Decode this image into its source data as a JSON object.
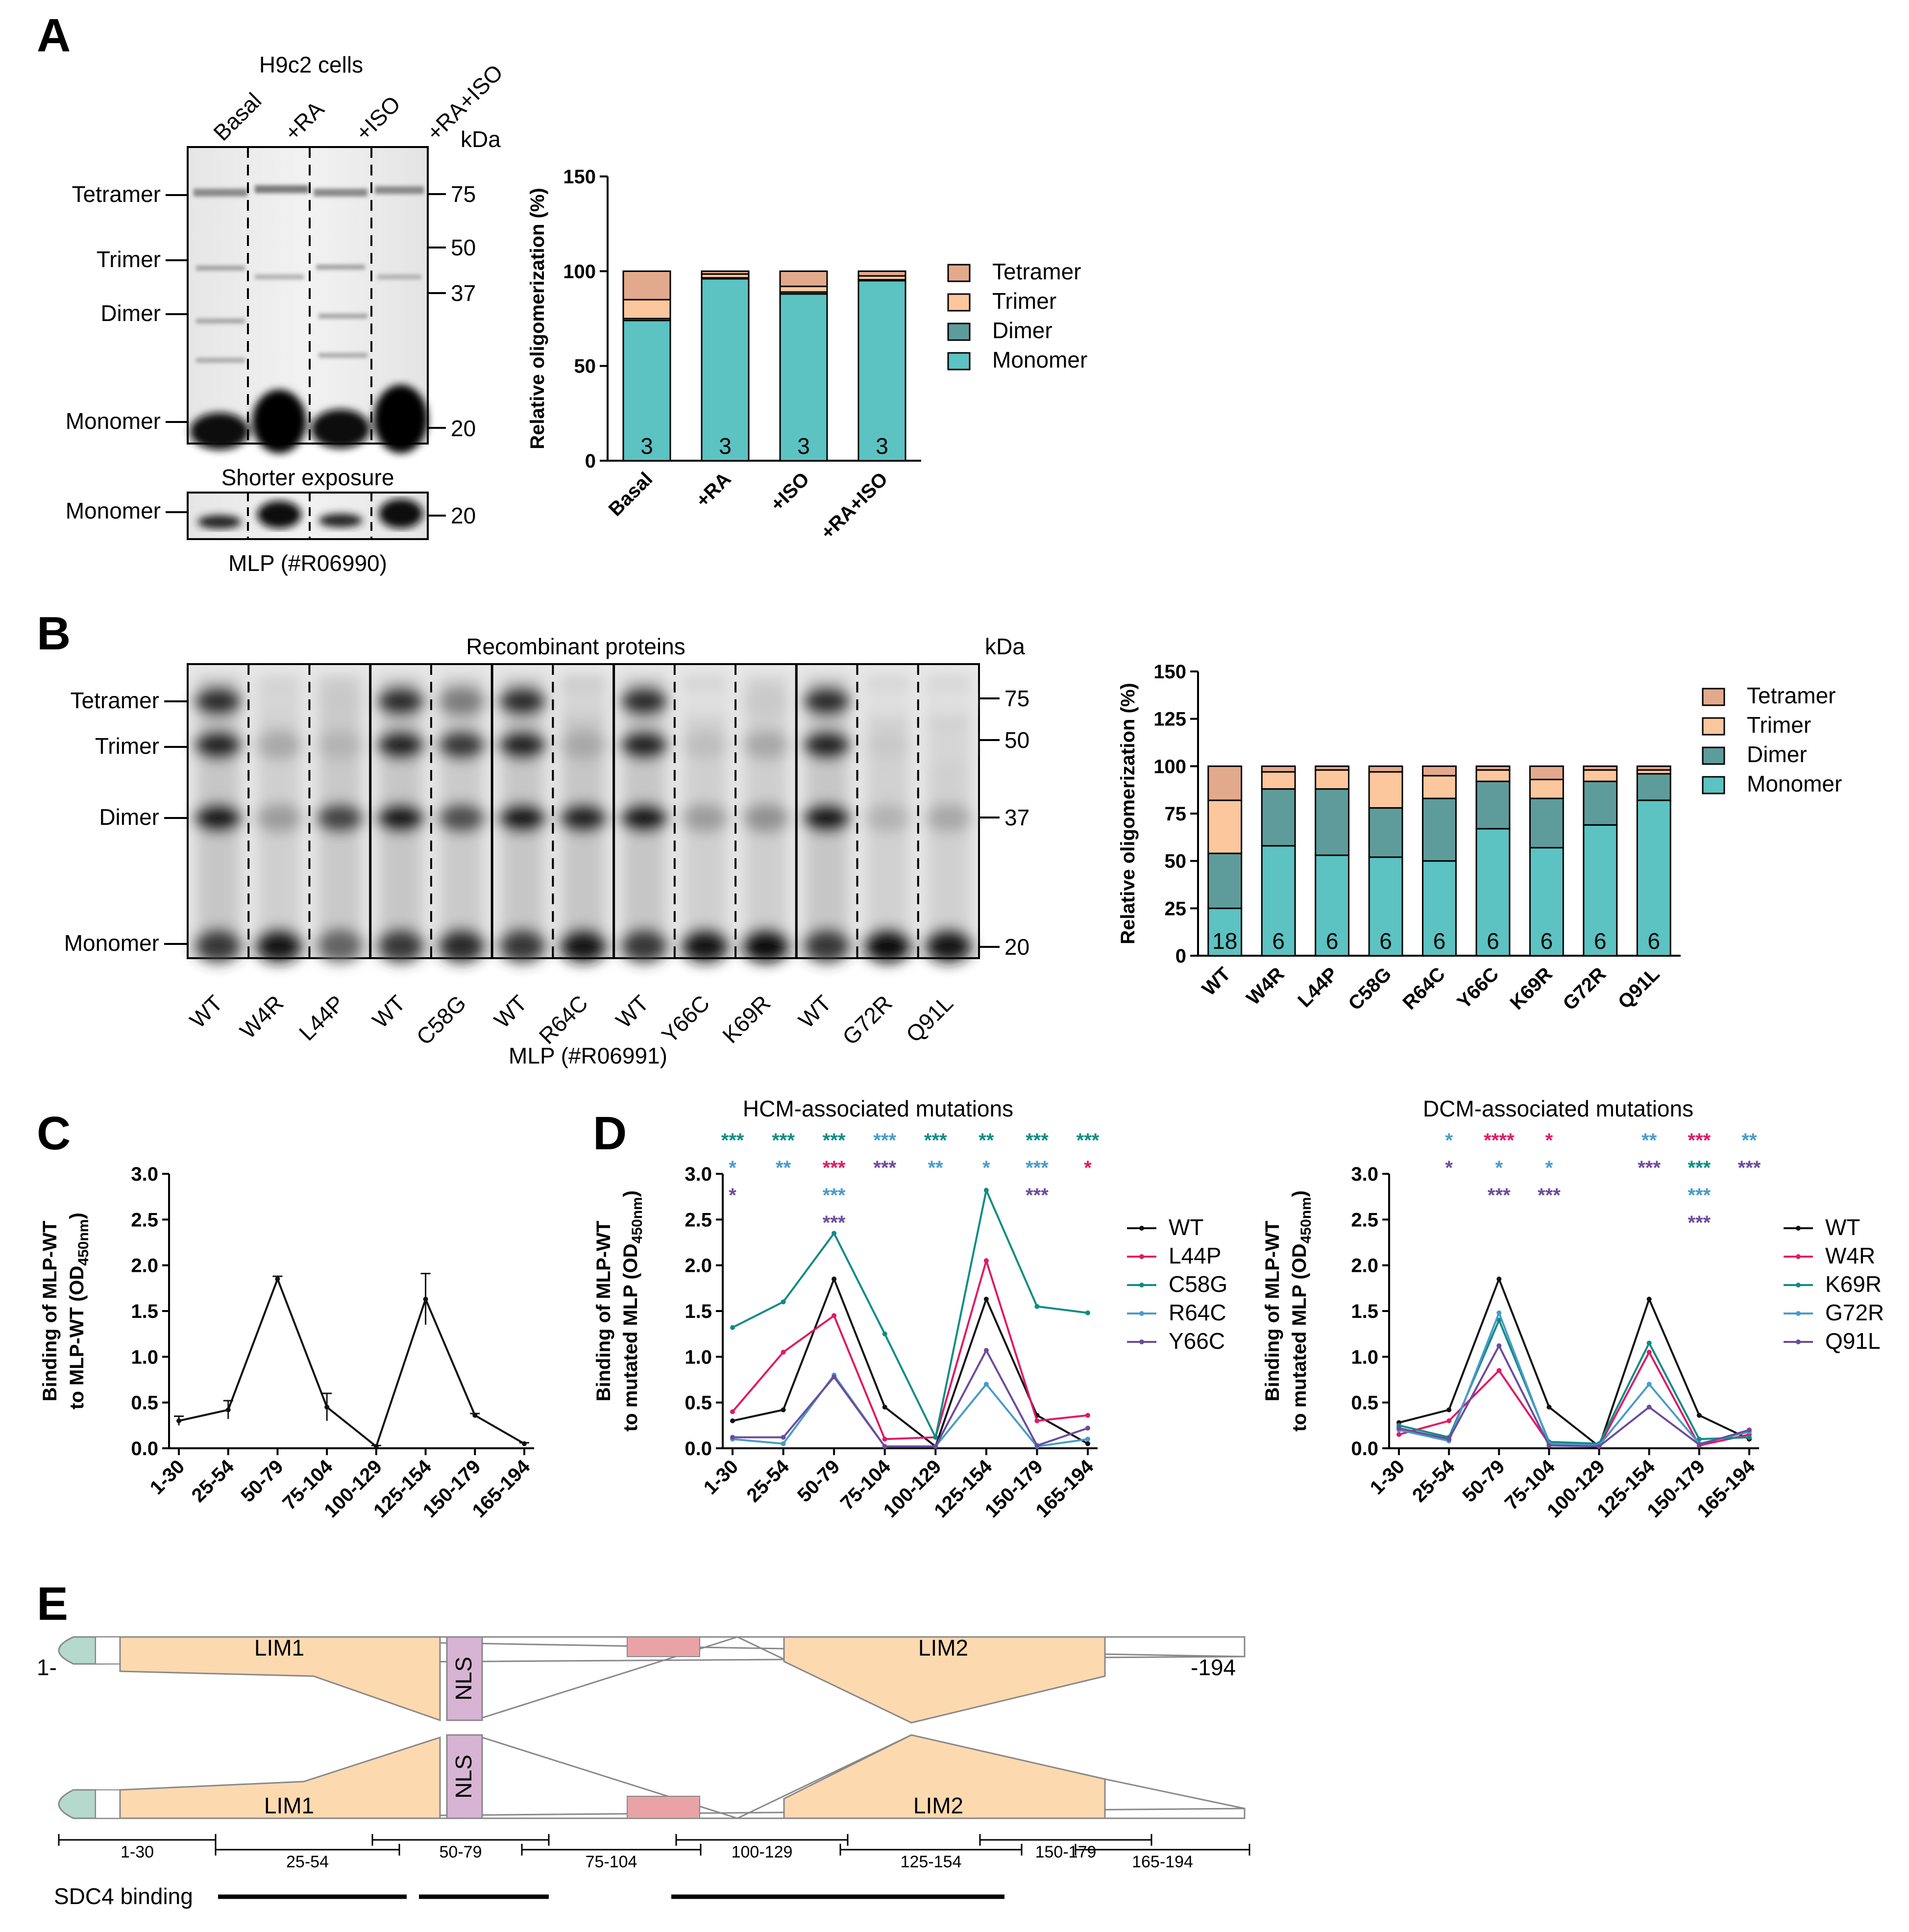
{
  "colors": {
    "tetramer": "#E3A98C",
    "trimer": "#FDC79D",
    "dimer": "#5E9C9C",
    "monomer": "#5CC2C2",
    "wt": "#111111",
    "l44p": "#E01A64",
    "c58g": "#0E8C84",
    "r64c": "#4A9BC9",
    "y66c": "#6B4C9C",
    "lim": "#FDD9B0",
    "nls": "#D8B4D4",
    "red_box": "#E9A3A6",
    "green_cap": "#B5D9CC"
  },
  "panelA": {
    "letter": "A",
    "cells_title": "H9c2 cells",
    "lanes": [
      "Basal",
      "+RA",
      "+ISO",
      "+RA+ISO"
    ],
    "kda": "kDa",
    "left_labels": [
      "Tetramer",
      "Trimer",
      "Dimer",
      "Monomer"
    ],
    "markers": [
      "75",
      "50",
      "37",
      "20"
    ],
    "shorter_exposure": "Shorter exposure",
    "monomer_label": "Monomer",
    "marker_short": "20",
    "antibody": "MLP (#R06990)"
  },
  "chartA": {
    "type": "bar",
    "stacked": true,
    "ylabel": "Relative oligomerization  (%)",
    "ylim": [
      0,
      150
    ],
    "yticks": [
      "0",
      "50",
      "100",
      "150"
    ],
    "categories": [
      "Basal",
      "+RA",
      "+ISO",
      "+RA+ISO"
    ],
    "n": [
      "3",
      "3",
      "3",
      "3"
    ],
    "series": [
      {
        "name": "Monomer",
        "values": [
          74,
          96,
          88,
          95
        ]
      },
      {
        "name": "Dimer",
        "values": [
          1,
          0.5,
          1,
          0.5
        ]
      },
      {
        "name": "Trimer",
        "values": [
          10,
          2,
          3,
          2
        ]
      },
      {
        "name": "Tetramer",
        "values": [
          15,
          1.5,
          8,
          2.5
        ]
      }
    ],
    "legend": [
      "Tetramer",
      "Trimer",
      "Dimer",
      "Monomer"
    ]
  },
  "panelB": {
    "letter": "B",
    "title": "Recombinant proteins",
    "kda": "kDa",
    "left_labels": [
      "Tetramer",
      "Trimer",
      "Dimer",
      "Monomer"
    ],
    "markers": [
      "75",
      "50",
      "37",
      "20"
    ],
    "lanes": [
      "WT",
      "W4R",
      "L44P",
      "WT",
      "C58G",
      "WT",
      "R64C",
      "WT",
      "Y66C",
      "K69R",
      "WT",
      "G72R",
      "Q91L"
    ],
    "antibody": "MLP (#R06991)"
  },
  "chartB": {
    "type": "bar",
    "stacked": true,
    "ylabel": "Relative oligomerization  (%)",
    "ylim": [
      0,
      150
    ],
    "yticks": [
      "0",
      "25",
      "50",
      "75",
      "100",
      "125",
      "150"
    ],
    "categories": [
      "WT",
      "W4R",
      "L44P",
      "C58G",
      "R64C",
      "Y66C",
      "K69R",
      "G72R",
      "Q91L"
    ],
    "n": [
      "18",
      "6",
      "6",
      "6",
      "6",
      "6",
      "6",
      "6",
      "6"
    ],
    "series": [
      {
        "name": "Monomer",
        "values": [
          25,
          58,
          53,
          52,
          50,
          67,
          57,
          69,
          82
        ]
      },
      {
        "name": "Dimer",
        "values": [
          29,
          30,
          35,
          26,
          33,
          25,
          26,
          23,
          14
        ]
      },
      {
        "name": "Trimer",
        "values": [
          28,
          9,
          10,
          19,
          12,
          6,
          10,
          6,
          2
        ]
      },
      {
        "name": "Tetramer",
        "values": [
          18,
          3,
          2,
          3,
          5,
          2,
          7,
          2,
          2
        ]
      }
    ],
    "legend": [
      "Tetramer",
      "Trimer",
      "Dimer",
      "Monomer"
    ]
  },
  "chartC": {
    "letter": "C",
    "type": "line",
    "ylabel_line1": "Binding of MLP-WT",
    "ylabel_line2": "to MLP-WT (OD",
    "ylabel_sub": "450nm",
    "ylabel_close": ")",
    "ylim": [
      0,
      3.0
    ],
    "yticks": [
      "0.0",
      "0.5",
      "1.0",
      "1.5",
      "2.0",
      "2.5",
      "3.0"
    ],
    "categories": [
      "1-30",
      "25-54",
      "50-79",
      "75-104",
      "100-129",
      "125-154",
      "150-179",
      "165-194"
    ],
    "series": [
      {
        "name": "WT",
        "values": [
          0.3,
          0.42,
          1.85,
          0.45,
          0.02,
          1.63,
          0.36,
          0.05
        ],
        "errors": [
          0.05,
          0.1,
          0.03,
          0.15,
          0.01,
          0.28,
          0.02,
          0.01
        ]
      }
    ]
  },
  "chartD1": {
    "letter": "D",
    "title": "HCM-associated mutations",
    "type": "line",
    "ylabel_line1": "Binding of MLP-WT",
    "ylabel_line2": "to mutated MLP (OD",
    "ylabel_sub": "450nm",
    "ylabel_close": ")",
    "ylim": [
      0,
      3.0
    ],
    "yticks": [
      "0.0",
      "0.5",
      "1.0",
      "1.5",
      "2.0",
      "2.5",
      "3.0"
    ],
    "categories": [
      "1-30",
      "25-54",
      "50-79",
      "75-104",
      "100-129",
      "125-154",
      "150-179",
      "165-194"
    ],
    "series": [
      {
        "name": "WT",
        "color": "#111111",
        "values": [
          0.3,
          0.42,
          1.85,
          0.45,
          0.02,
          1.63,
          0.36,
          0.05
        ]
      },
      {
        "name": "L44P",
        "color": "#E01A64",
        "values": [
          0.4,
          1.05,
          1.45,
          0.1,
          0.12,
          2.05,
          0.3,
          0.36
        ]
      },
      {
        "name": "C58G",
        "color": "#0E8C84",
        "values": [
          1.32,
          1.6,
          2.35,
          1.25,
          0.12,
          2.82,
          1.55,
          1.48
        ]
      },
      {
        "name": "R64C",
        "color": "#4A9BC9",
        "values": [
          0.1,
          0.05,
          0.8,
          0.02,
          0.02,
          0.7,
          0.02,
          0.1
        ]
      },
      {
        "name": "Y66C",
        "color": "#6B4C9C",
        "values": [
          0.12,
          0.12,
          0.78,
          0.02,
          0.02,
          1.07,
          0.03,
          0.22
        ]
      }
    ],
    "legend": [
      "WT",
      "L44P",
      "C58G",
      "R64C",
      "Y66C"
    ],
    "significance": [
      [
        {
          "t": "***",
          "c": "#0E8C84"
        },
        {
          "t": "*",
          "c": "#4A9BC9"
        },
        {
          "t": "*",
          "c": "#6B4C9C"
        }
      ],
      [
        {
          "t": "***",
          "c": "#0E8C84"
        },
        {
          "t": "**",
          "c": "#4A9BC9"
        }
      ],
      [
        {
          "t": "***",
          "c": "#0E8C84"
        },
        {
          "t": "***",
          "c": "#E01A64"
        },
        {
          "t": "***",
          "c": "#4A9BC9"
        },
        {
          "t": "***",
          "c": "#6B4C9C"
        }
      ],
      [
        {
          "t": "***",
          "c": "#4A9BC9"
        },
        {
          "t": "***",
          "c": "#6B4C9C"
        }
      ],
      [
        {
          "t": "***",
          "c": "#0E8C84"
        },
        {
          "t": "**",
          "c": "#4A9BC9"
        }
      ],
      [
        {
          "t": "**",
          "c": "#0E8C84"
        },
        {
          "t": "*",
          "c": "#4A9BC9"
        }
      ],
      [
        {
          "t": "***",
          "c": "#0E8C84"
        },
        {
          "t": "***",
          "c": "#4A9BC9"
        },
        {
          "t": "***",
          "c": "#6B4C9C"
        }
      ],
      [
        {
          "t": "***",
          "c": "#0E8C84"
        },
        {
          "t": "*",
          "c": "#E01A64"
        }
      ]
    ]
  },
  "chartD2": {
    "title": "DCM-associated mutations",
    "type": "line",
    "ylabel_line1": "Binding of MLP-WT",
    "ylabel_line2": "to mutated MLP (OD",
    "ylabel_sub": "450nm",
    "ylabel_close": ")",
    "ylim": [
      0,
      3.0
    ],
    "yticks": [
      "0.0",
      "0.5",
      "1.0",
      "1.5",
      "2.0",
      "2.5",
      "3.0"
    ],
    "categories": [
      "1-30",
      "25-54",
      "50-79",
      "75-104",
      "100-129",
      "125-154",
      "150-179",
      "165-194"
    ],
    "series": [
      {
        "name": "WT",
        "color": "#111111",
        "values": [
          0.28,
          0.42,
          1.85,
          0.45,
          0.02,
          1.63,
          0.36,
          0.1
        ]
      },
      {
        "name": "W4R",
        "color": "#E01A64",
        "values": [
          0.15,
          0.3,
          0.85,
          0.05,
          0.02,
          1.05,
          0.03,
          0.15
        ]
      },
      {
        "name": "K69R",
        "color": "#0E8C84",
        "values": [
          0.25,
          0.12,
          1.4,
          0.07,
          0.05,
          1.15,
          0.1,
          0.12
        ]
      },
      {
        "name": "G72R",
        "color": "#4A9BC9",
        "values": [
          0.2,
          0.08,
          1.48,
          0.05,
          0.03,
          0.7,
          0.05,
          0.18
        ]
      },
      {
        "name": "Q91L",
        "color": "#6B4C9C",
        "values": [
          0.22,
          0.1,
          1.12,
          0.03,
          0.02,
          0.45,
          0.04,
          0.2
        ]
      }
    ],
    "legend": [
      "WT",
      "W4R",
      "K69R",
      "G72R",
      "Q91L"
    ],
    "significance": [
      [],
      [
        {
          "t": "*",
          "c": "#4A9BC9"
        },
        {
          "t": "*",
          "c": "#6B4C9C"
        }
      ],
      [
        {
          "t": "****",
          "c": "#E01A64"
        },
        {
          "t": "*",
          "c": "#4A9BC9"
        },
        {
          "t": "***",
          "c": "#6B4C9C"
        }
      ],
      [
        {
          "t": "*",
          "c": "#E01A64"
        },
        {
          "t": "*",
          "c": "#4A9BC9"
        },
        {
          "t": "***",
          "c": "#6B4C9C"
        }
      ],
      [],
      [
        {
          "t": "**",
          "c": "#4A9BC9"
        },
        {
          "t": "***",
          "c": "#6B4C9C"
        }
      ],
      [
        {
          "t": "***",
          "c": "#E01A64"
        },
        {
          "t": "***",
          "c": "#0E8C84"
        },
        {
          "t": "***",
          "c": "#4A9BC9"
        },
        {
          "t": "***",
          "c": "#6B4C9C"
        }
      ],
      [
        {
          "t": "**",
          "c": "#4A9BC9"
        },
        {
          "t": "***",
          "c": "#6B4C9C"
        }
      ]
    ]
  },
  "panelE": {
    "letter": "E",
    "lim1": "LIM1",
    "lim2": "LIM2",
    "nls": "NLS",
    "start": "1-",
    "end": "-194",
    "peptides": [
      "1-30",
      "25-54",
      "50-79",
      "75-104",
      "100-129",
      "125-154",
      "150-179",
      "165-194"
    ],
    "sdc4_label": "SDC4 binding"
  }
}
